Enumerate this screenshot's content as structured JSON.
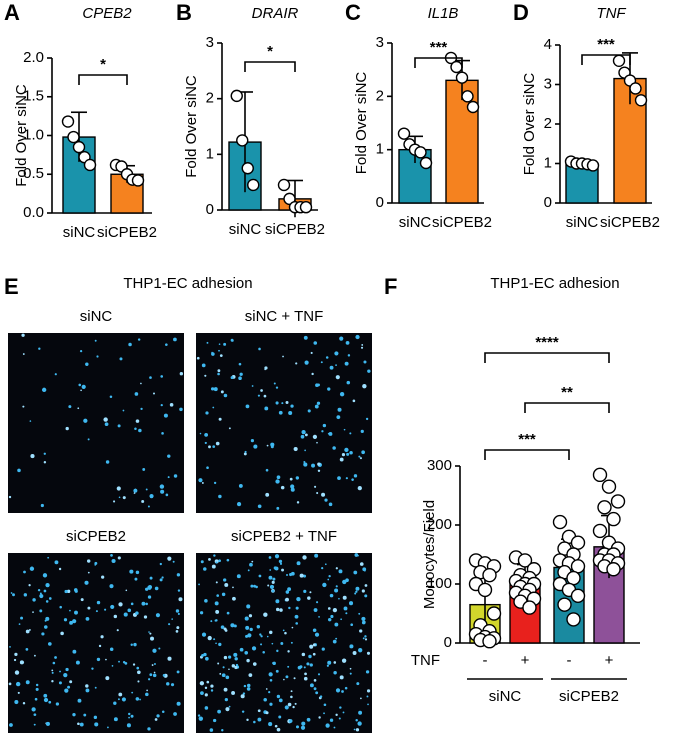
{
  "chart_data": [
    {
      "type": "bar",
      "panel": "A",
      "title": "CPEB2",
      "ylabel": "Fold Over siNC",
      "categories": [
        "siNC",
        "siCPEB2"
      ],
      "colors": [
        "#1a93ab",
        "#f5821f"
      ],
      "values": [
        0.98,
        0.5
      ],
      "errors": [
        0.32,
        0.11
      ],
      "points": [
        [
          1.18,
          0.98,
          0.85,
          0.72,
          0.62
        ],
        [
          0.62,
          0.6,
          0.5,
          0.43,
          0.42
        ]
      ],
      "ylim": [
        0,
        2.0
      ],
      "yticks": [
        {
          "value": 0,
          "label": "0.0"
        },
        {
          "value": 0.5,
          "label": "0.5"
        },
        {
          "value": 1.0,
          "label": "1.0"
        },
        {
          "value": 1.5,
          "label": "1.5"
        },
        {
          "value": 2.0,
          "label": "2.0"
        }
      ],
      "comparisons": [
        {
          "label": "*",
          "pair": [
            0,
            1
          ]
        }
      ]
    },
    {
      "type": "bar",
      "panel": "B",
      "title": "DRAIR",
      "ylabel": "Fold Over siNC",
      "categories": [
        "siNC",
        "siCPEB2"
      ],
      "colors": [
        "#1a93ab",
        "#f5821f"
      ],
      "values": [
        1.22,
        0.2
      ],
      "errors": [
        0.9,
        0.33
      ],
      "points": [
        [
          2.05,
          1.25,
          0.75,
          0.45
        ],
        [
          0.45,
          0.2,
          0.05,
          0.05,
          0.05
        ]
      ],
      "ylim": [
        0,
        3
      ],
      "yticks": [
        0,
        1,
        2,
        3
      ],
      "comparisons": [
        {
          "label": "*",
          "pair": [
            0,
            1
          ]
        }
      ]
    },
    {
      "type": "bar",
      "panel": "C",
      "title": "IL1B",
      "ylabel": "Fold Over siNC",
      "categories": [
        "siNC",
        "siCPEB2"
      ],
      "colors": [
        "#1a93ab",
        "#f5821f"
      ],
      "values": [
        1.0,
        2.3
      ],
      "errors": [
        0.25,
        0.37
      ],
      "points": [
        [
          1.3,
          1.1,
          1.0,
          0.95,
          0.75
        ],
        [
          2.72,
          2.55,
          2.35,
          2.0,
          1.8
        ]
      ],
      "ylim": [
        0,
        3
      ],
      "yticks": [
        0,
        1,
        2,
        3
      ],
      "comparisons": [
        {
          "label": "***",
          "pair": [
            0,
            1
          ]
        }
      ]
    },
    {
      "type": "bar",
      "panel": "D",
      "title": "TNF",
      "ylabel": "Fold Over siNC",
      "categories": [
        "siNC",
        "siCPEB2"
      ],
      "colors": [
        "#1a93ab",
        "#f5821f"
      ],
      "values": [
        1.0,
        3.15
      ],
      "errors": [
        0.07,
        0.65
      ],
      "points": [
        [
          1.05,
          1.0,
          1.0,
          0.98,
          0.95
        ],
        [
          3.6,
          3.3,
          3.1,
          2.9,
          2.6
        ]
      ],
      "ylim": [
        0,
        4
      ],
      "yticks": [
        0,
        1,
        2,
        3,
        4
      ],
      "comparisons": [
        {
          "label": "***",
          "pair": [
            0,
            1
          ]
        }
      ]
    },
    {
      "type": "bar",
      "panel": "F",
      "title": "THP1-EC adhesion",
      "ylabel": "Monocytes/Field",
      "categories": [
        "-",
        "+",
        "-",
        "+"
      ],
      "row_label": "TNF",
      "groups": [
        {
          "label": "siNC",
          "span": [
            0,
            1
          ]
        },
        {
          "label": "siCPEB2",
          "span": [
            2,
            3
          ]
        }
      ],
      "colors": [
        "#d2d62c",
        "#e8211d",
        "#1a8aa0",
        "#8e5199"
      ],
      "values": [
        65,
        103,
        128,
        163
      ],
      "errors": [
        55,
        30,
        48,
        53
      ],
      "points": [
        [
          140,
          135,
          130,
          120,
          115,
          100,
          90,
          50,
          30,
          20,
          15,
          10,
          8,
          5,
          3
        ],
        [
          145,
          140,
          125,
          115,
          110,
          105,
          100,
          100,
          95,
          90,
          85,
          80,
          75,
          70,
          60
        ],
        [
          205,
          180,
          170,
          160,
          150,
          140,
          135,
          130,
          120,
          110,
          100,
          90,
          80,
          65,
          40
        ],
        [
          285,
          265,
          240,
          230,
          210,
          190,
          170,
          160,
          150,
          150,
          140,
          140,
          135,
          130,
          125
        ]
      ],
      "ylim": [
        0,
        300
      ],
      "yticks": [
        0,
        100,
        200,
        300
      ],
      "comparisons": [
        {
          "label": "***",
          "pair": [
            0,
            2
          ]
        },
        {
          "label": "**",
          "pair": [
            1,
            3
          ]
        },
        {
          "label": "****",
          "pair": [
            0,
            3
          ]
        }
      ]
    }
  ],
  "image_panel": {
    "panel": "E",
    "title": "THP1-EC adhesion",
    "images": [
      "siNC",
      "siNC + TNF",
      "siCPEB2",
      "siCPEB2 + TNF"
    ]
  }
}
